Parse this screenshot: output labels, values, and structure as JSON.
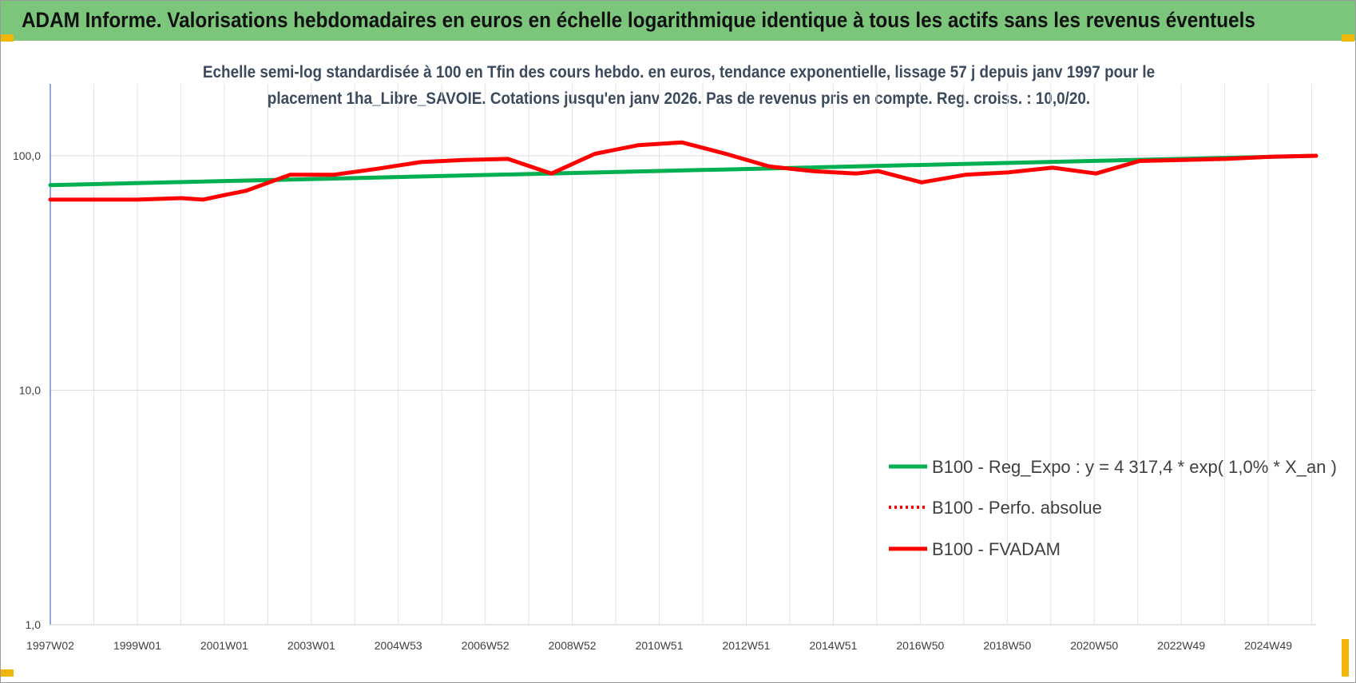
{
  "header": {
    "title": "ADAM Informe. Valorisations hebdomadaires en euros en échelle logarithmique identique à tous les actifs sans les revenus éventuels"
  },
  "chart_data": {
    "type": "line",
    "title_line1": "Echelle semi-log standardisée à 100 en Tfin des cours hebdo. en euros, tendance exponentielle, lissage 57 j depuis janv 1997 pour le",
    "title_line2": "placement 1ha_Libre_SAVOIE. Cotations jusqu'en janv 2026. Pas de revenus pris en compte. Reg. croiss. : 10,0/20.",
    "yscale": "log",
    "ylim": [
      1,
      100
    ],
    "ytick_labels": [
      "100,0",
      "10,0",
      "1,0"
    ],
    "ytick_values": [
      100,
      10,
      1
    ],
    "xtick_labels": [
      "1997W02",
      "1999W01",
      "2001W01",
      "2003W01",
      "2004W53",
      "2006W52",
      "2008W52",
      "2010W51",
      "2012W51",
      "2014W51",
      "2016W50",
      "2018W50",
      "2020W50",
      "2022W49",
      "2024W49"
    ],
    "xlim": [
      1997.0,
      2026.05
    ],
    "grid": true,
    "legend_position": "bottom-right",
    "series": [
      {
        "name": "B100 - Reg_Expo : y = 4 317,4 * exp( 1,0% *  X_an )",
        "color": "#00b050",
        "style": "solid",
        "x": [
          1997.0,
          2026.05
        ],
        "values": [
          75,
          100
        ]
      },
      {
        "name": "B100 - Perfo. absolue",
        "color": "#ff0000",
        "style": "dotted",
        "x": [],
        "values": []
      },
      {
        "name": "B100 - FVADAM",
        "color": "#ff0000",
        "style": "solid",
        "x": [
          1997.0,
          1999.0,
          2000.0,
          2000.5,
          2001.0,
          2001.5,
          2002.5,
          2003.5,
          2004.5,
          2005.5,
          2006.5,
          2007.5,
          2008.5,
          2009.5,
          2010.5,
          2011.5,
          2012.5,
          2013.5,
          2014.5,
          2015.5,
          2016.0,
          2017.0,
          2018.0,
          2019.0,
          2020.0,
          2021.0,
          2022.0,
          2023.0,
          2024.0,
          2025.0,
          2026.05
        ],
        "values": [
          65,
          65,
          66,
          65,
          68,
          71,
          83,
          83,
          88,
          94,
          96,
          97,
          84,
          102,
          111,
          114,
          102,
          90,
          86,
          84,
          86,
          77,
          83,
          85,
          89,
          84,
          95,
          96,
          97,
          99,
          100
        ]
      }
    ]
  }
}
